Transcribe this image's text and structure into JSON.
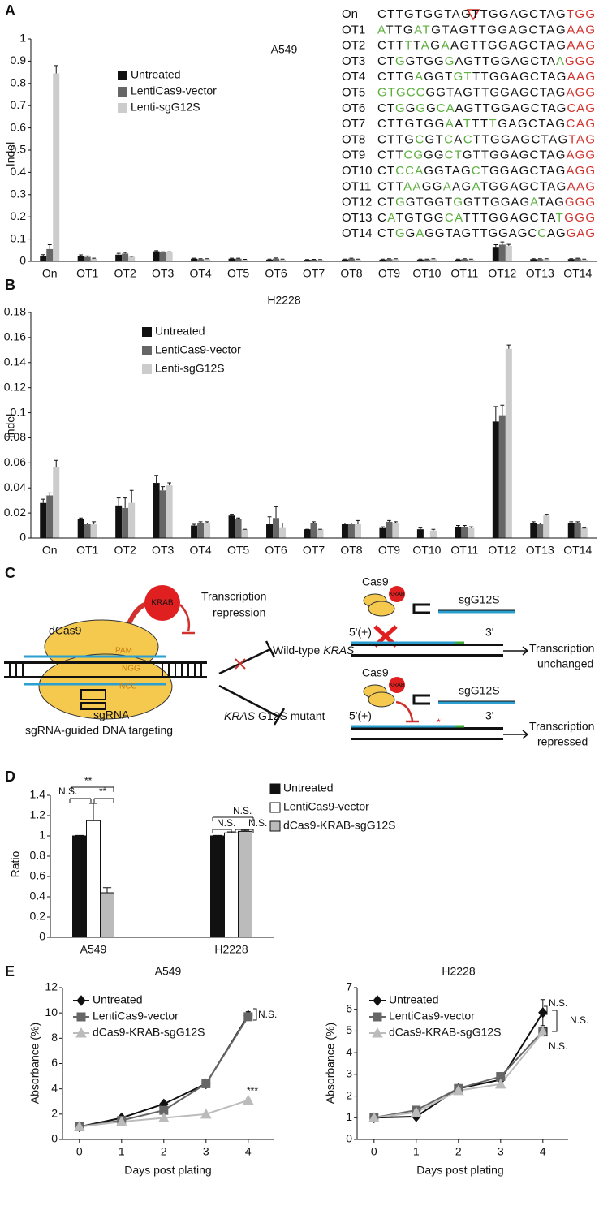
{
  "panel_labels": [
    "A",
    "B",
    "C",
    "D",
    "E"
  ],
  "sequences": [
    {
      "name": "On",
      "segments": [
        {
          "text": "CTTGTGGTAGTTGGAGCTAG",
          "color": "#111111"
        },
        {
          "text": "TGG",
          "color": "#d0312d"
        }
      ]
    },
    {
      "name": "OT1",
      "segments": [
        {
          "text": "A",
          "color": "#5aae3c"
        },
        {
          "text": "TTG",
          "color": "#111111"
        },
        {
          "text": "AT",
          "color": "#5aae3c"
        },
        {
          "text": "GTAGTTGGAGCTAG",
          "color": "#111111"
        },
        {
          "text": "AAG",
          "color": "#d0312d"
        }
      ]
    },
    {
      "name": "OT2",
      "segments": [
        {
          "text": "CTT",
          "color": "#111111"
        },
        {
          "text": "T",
          "color": "#5aae3c"
        },
        {
          "text": "T",
          "color": "#111111"
        },
        {
          "text": "A",
          "color": "#5aae3c"
        },
        {
          "text": "G",
          "color": "#111111"
        },
        {
          "text": "A",
          "color": "#5aae3c"
        },
        {
          "text": "AGTTGGAGCTAG",
          "color": "#111111"
        },
        {
          "text": "AAG",
          "color": "#d0312d"
        }
      ]
    },
    {
      "name": "OT3",
      "segments": [
        {
          "text": "CT",
          "color": "#111111"
        },
        {
          "text": "G",
          "color": "#5aae3c"
        },
        {
          "text": "GTGG",
          "color": "#111111"
        },
        {
          "text": "G",
          "color": "#5aae3c"
        },
        {
          "text": "AGTTGGAGCTA",
          "color": "#111111"
        },
        {
          "text": "A",
          "color": "#5aae3c"
        },
        {
          "text": "GGG",
          "color": "#d0312d"
        }
      ]
    },
    {
      "name": "OT4",
      "segments": [
        {
          "text": "CTTG",
          "color": "#111111"
        },
        {
          "text": "A",
          "color": "#5aae3c"
        },
        {
          "text": "GGT",
          "color": "#111111"
        },
        {
          "text": "GT",
          "color": "#5aae3c"
        },
        {
          "text": "TTGGAGCTAG",
          "color": "#111111"
        },
        {
          "text": "AAG",
          "color": "#d0312d"
        }
      ]
    },
    {
      "name": "OT5",
      "segments": [
        {
          "text": "GTGCC",
          "color": "#5aae3c"
        },
        {
          "text": "GGTAGTTGGAGCTAG",
          "color": "#111111"
        },
        {
          "text": "AGG",
          "color": "#d0312d"
        }
      ]
    },
    {
      "name": "OT6",
      "segments": [
        {
          "text": "CT",
          "color": "#111111"
        },
        {
          "text": "G",
          "color": "#5aae3c"
        },
        {
          "text": "G",
          "color": "#111111"
        },
        {
          "text": "G",
          "color": "#5aae3c"
        },
        {
          "text": "G",
          "color": "#111111"
        },
        {
          "text": "CA",
          "color": "#5aae3c"
        },
        {
          "text": "AGTTGGAGCTAG",
          "color": "#111111"
        },
        {
          "text": "CAG",
          "color": "#d0312d"
        }
      ]
    },
    {
      "name": "OT7",
      "segments": [
        {
          "text": "CTTGTGG",
          "color": "#111111"
        },
        {
          "text": "A",
          "color": "#5aae3c"
        },
        {
          "text": "A",
          "color": "#111111"
        },
        {
          "text": "T",
          "color": "#5aae3c"
        },
        {
          "text": "TT",
          "color": "#111111"
        },
        {
          "text": "T",
          "color": "#5aae3c"
        },
        {
          "text": "GAGCTAG",
          "color": "#111111"
        },
        {
          "text": "CAG",
          "color": "#d0312d"
        }
      ]
    },
    {
      "name": "OT8",
      "segments": [
        {
          "text": "CTTG",
          "color": "#111111"
        },
        {
          "text": "C",
          "color": "#5aae3c"
        },
        {
          "text": "GT",
          "color": "#111111"
        },
        {
          "text": "C",
          "color": "#5aae3c"
        },
        {
          "text": "A",
          "color": "#111111"
        },
        {
          "text": "C",
          "color": "#5aae3c"
        },
        {
          "text": "TTGGAGCTAG",
          "color": "#111111"
        },
        {
          "text": "TAG",
          "color": "#d0312d"
        }
      ]
    },
    {
      "name": "OT9",
      "segments": [
        {
          "text": "CTT",
          "color": "#111111"
        },
        {
          "text": "CG",
          "color": "#5aae3c"
        },
        {
          "text": "GG",
          "color": "#111111"
        },
        {
          "text": "CT",
          "color": "#5aae3c"
        },
        {
          "text": "GTTGGAGCTAG",
          "color": "#111111"
        },
        {
          "text": "AGG",
          "color": "#d0312d"
        }
      ]
    },
    {
      "name": "OT10",
      "segments": [
        {
          "text": "CT",
          "color": "#111111"
        },
        {
          "text": "CCA",
          "color": "#5aae3c"
        },
        {
          "text": "GGTAG",
          "color": "#111111"
        },
        {
          "text": "C",
          "color": "#5aae3c"
        },
        {
          "text": "TGGAGCTAG",
          "color": "#111111"
        },
        {
          "text": "AGG",
          "color": "#d0312d"
        }
      ]
    },
    {
      "name": "OT11",
      "segments": [
        {
          "text": "CTT",
          "color": "#111111"
        },
        {
          "text": "AA",
          "color": "#5aae3c"
        },
        {
          "text": "GG",
          "color": "#111111"
        },
        {
          "text": "A",
          "color": "#5aae3c"
        },
        {
          "text": "AG",
          "color": "#111111"
        },
        {
          "text": "A",
          "color": "#5aae3c"
        },
        {
          "text": "TGGAGCTAG",
          "color": "#111111"
        },
        {
          "text": "AAG",
          "color": "#d0312d"
        }
      ]
    },
    {
      "name": "OT12",
      "segments": [
        {
          "text": "CT",
          "color": "#111111"
        },
        {
          "text": "G",
          "color": "#5aae3c"
        },
        {
          "text": "GTGGT",
          "color": "#111111"
        },
        {
          "text": "G",
          "color": "#5aae3c"
        },
        {
          "text": "GTTGGAG",
          "color": "#111111"
        },
        {
          "text": "A",
          "color": "#5aae3c"
        },
        {
          "text": "TAG",
          "color": "#111111"
        },
        {
          "text": "GGG",
          "color": "#d0312d"
        }
      ]
    },
    {
      "name": "OT13",
      "segments": [
        {
          "text": "C",
          "color": "#111111"
        },
        {
          "text": "A",
          "color": "#5aae3c"
        },
        {
          "text": "TGTGG",
          "color": "#111111"
        },
        {
          "text": "CA",
          "color": "#5aae3c"
        },
        {
          "text": "TTTGGAGCTA",
          "color": "#111111"
        },
        {
          "text": "T",
          "color": "#5aae3c"
        },
        {
          "text": "GGG",
          "color": "#d0312d"
        }
      ]
    },
    {
      "name": "OT14",
      "segments": [
        {
          "text": "CT",
          "color": "#111111"
        },
        {
          "text": "G",
          "color": "#5aae3c"
        },
        {
          "text": "G",
          "color": "#111111"
        },
        {
          "text": "A",
          "color": "#5aae3c"
        },
        {
          "text": "GGTAGTTGGAGC",
          "color": "#111111"
        },
        {
          "text": "C",
          "color": "#5aae3c"
        },
        {
          "text": "AG",
          "color": "#111111"
        },
        {
          "text": "GAG",
          "color": "#d0312d"
        }
      ]
    }
  ],
  "diagram": {
    "dcas9": "dCas9",
    "krab": "KRAB",
    "repression": [
      "Transcription",
      "repression"
    ],
    "pam": "PAM",
    "ngg": "NGG",
    "ncc": "NCC",
    "sgrna": "sgRNA",
    "targeting": "sgRNA-guided DNA targeting",
    "wild_type": [
      "Wild-type",
      "KRAS"
    ],
    "mutant": [
      "KRAS",
      "G12S mutant"
    ],
    "top": {
      "cas9": "Cas9",
      "krab": "KRAB",
      "guide": "sgG12S",
      "five": "5'(+)",
      "three": "3'",
      "outcome": [
        "Transcription",
        "unchanged"
      ]
    },
    "bottom": {
      "cas9": "Cas9",
      "krab": "KRAB",
      "guide": "sgG12S",
      "five": "5'(+)",
      "three": "3'",
      "outcome": [
        "Transcription",
        "repressed"
      ]
    }
  },
  "chart_data": [
    {
      "type": "bar",
      "title": "A549",
      "y_label": "Indel",
      "categories": [
        "On",
        "OT1",
        "OT2",
        "OT3",
        "OT4",
        "OT5",
        "OT6",
        "OT7",
        "OT8",
        "OT9",
        "OT10",
        "OT11",
        "OT12",
        "OT13",
        "OT14"
      ],
      "series": [
        {
          "name": "Untreated",
          "color": "#111111",
          "values": [
            0.025,
            0.025,
            0.03,
            0.045,
            0.012,
            0.012,
            0.008,
            0.007,
            0.008,
            0.008,
            0.008,
            0.008,
            0.065,
            0.01,
            0.01
          ],
          "errors": [
            0.005,
            0.004,
            0.006,
            0.003,
            0.002,
            0.002,
            0.002,
            0.001,
            0.002,
            0.002,
            0.002,
            0.002,
            0.01,
            0.002,
            0.002
          ]
        },
        {
          "name": "LentiCas9-vector",
          "color": "#666666",
          "values": [
            0.055,
            0.02,
            0.035,
            0.04,
            0.01,
            0.012,
            0.012,
            0.008,
            0.012,
            0.01,
            0.008,
            0.01,
            0.075,
            0.01,
            0.012
          ],
          "errors": [
            0.02,
            0.004,
            0.005,
            0.003,
            0.002,
            0.002,
            0.003,
            0.001,
            0.002,
            0.002,
            0.002,
            0.002,
            0.012,
            0.002,
            0.002
          ]
        },
        {
          "name": "Lenti-sgG12S",
          "color": "#cccccc",
          "values": [
            0.845,
            0.012,
            0.02,
            0.04,
            0.01,
            0.008,
            0.008,
            0.007,
            0.008,
            0.01,
            0.01,
            0.008,
            0.07,
            0.01,
            0.008
          ],
          "errors": [
            0.035,
            0.002,
            0.003,
            0.003,
            0.002,
            0.001,
            0.002,
            0.001,
            0.002,
            0.002,
            0.002,
            0.002,
            0.006,
            0.002,
            0.002
          ]
        }
      ],
      "ylim": [
        0,
        1
      ],
      "yticks": [
        0,
        0.1,
        0.2,
        0.3,
        0.4,
        0.5,
        0.6,
        0.7,
        0.8,
        0.9,
        1
      ]
    },
    {
      "type": "bar",
      "title": "H2228",
      "y_label": "Indel",
      "categories": [
        "On",
        "OT1",
        "OT2",
        "OT3",
        "OT4",
        "OT5",
        "OT6",
        "OT7",
        "OT8",
        "OT9",
        "OT10",
        "OT11",
        "OT12",
        "OT13",
        "OT14"
      ],
      "series": [
        {
          "name": "Untreated",
          "color": "#111111",
          "values": [
            0.028,
            0.015,
            0.026,
            0.044,
            0.01,
            0.018,
            0.011,
            0.007,
            0.011,
            0.008,
            0.007,
            0.009,
            0.093,
            0.012,
            0.012
          ],
          "errors": [
            0.003,
            0.001,
            0.006,
            0.006,
            0.001,
            0.001,
            0.006,
            0,
            0.001,
            0.001,
            0.001,
            0.001,
            0.012,
            0.001,
            0.001
          ]
        },
        {
          "name": "LentiCas9-vector",
          "color": "#666666",
          "values": [
            0.034,
            0.011,
            0.024,
            0.038,
            0.012,
            0.015,
            0.016,
            0.012,
            0.011,
            0.013,
            0,
            0.009,
            0.098,
            0.011,
            0.012
          ],
          "errors": [
            0.002,
            0.001,
            0.008,
            0.003,
            0.001,
            0.001,
            0.009,
            0.001,
            0.001,
            0.001,
            0,
            0.001,
            0.008,
            0.001,
            0.001
          ]
        },
        {
          "name": "Lenti-sgG12S",
          "color": "#cccccc",
          "values": [
            0.057,
            0.011,
            0.028,
            0.042,
            0.012,
            0.007,
            0.008,
            0.007,
            0.011,
            0.012,
            0.006,
            0.008,
            0.151,
            0.018,
            0.008
          ],
          "errors": [
            0.005,
            0.002,
            0.01,
            0.002,
            0.001,
            0,
            0.004,
            0,
            0.003,
            0.001,
            0.001,
            0.001,
            0.003,
            0.001,
            0
          ]
        }
      ],
      "ylim": [
        0,
        0.18
      ],
      "yticks": [
        0,
        0.02,
        0.04,
        0.06,
        0.08,
        0.1,
        0.12,
        0.14,
        0.16,
        0.18
      ]
    },
    {
      "type": "bar",
      "y_label": "Ratio",
      "categories": [
        "A549",
        "H2228"
      ],
      "series": [
        {
          "name": "Untreated",
          "color": "#111111",
          "values": [
            1,
            1
          ],
          "errors": [
            0.005,
            0.005
          ]
        },
        {
          "name": "LentiCas9-vector",
          "color": "#ffffff",
          "values": [
            1.15,
            1.03
          ],
          "errors": [
            0.17,
            0.01
          ]
        },
        {
          "name": "dCas9-KRAB-sgG12S",
          "color": "#bbbbbb",
          "values": [
            0.44,
            1.045
          ],
          "errors": [
            0.05,
            0.01
          ]
        }
      ],
      "ylim": [
        0,
        1.4
      ],
      "yticks": [
        0,
        0.2,
        0.4,
        0.6,
        0.8,
        1,
        1.2,
        1.4
      ],
      "annotations": [
        "**",
        "N.S.",
        "**",
        "N.S.",
        "N.S.",
        "N.S."
      ]
    },
    {
      "type": "line",
      "title": "A549",
      "x_label": "Days post plating",
      "y_label": "Absorbance (%)",
      "x": [
        0,
        1,
        2,
        3,
        4
      ],
      "series": [
        {
          "name": "Untreated",
          "color": "#111111",
          "marker": "diamond",
          "values": [
            1,
            1.7,
            2.8,
            4.4,
            9.8
          ],
          "errors": [
            0.05,
            0.1,
            0.1,
            0.1,
            0.3
          ]
        },
        {
          "name": "LentiCas9-vector",
          "color": "#666666",
          "marker": "square",
          "values": [
            1,
            1.5,
            2.3,
            4.4,
            9.7
          ],
          "errors": [
            0.05,
            0.1,
            0.1,
            0.1,
            0.3
          ]
        },
        {
          "name": "dCas9-KRAB-sgG12S",
          "color": "#bbbbbb",
          "marker": "triangle",
          "values": [
            1,
            1.4,
            1.7,
            2,
            3.1
          ],
          "errors": [
            0.05,
            0.05,
            0.05,
            0.05,
            0.15
          ]
        }
      ],
      "xlim": [
        -0.4,
        4.6
      ],
      "xticks": [
        0,
        1,
        2,
        3,
        4
      ],
      "ylim": [
        0,
        12
      ],
      "yticks": [
        0,
        2,
        4,
        6,
        8,
        10,
        12
      ],
      "annotations": [
        "N.S.",
        "***"
      ]
    },
    {
      "type": "line",
      "title": "H2228",
      "x_label": "Days post plating",
      "y_label": "Absorbance (%)",
      "x": [
        0,
        1,
        2,
        3,
        4
      ],
      "series": [
        {
          "name": "Untreated",
          "color": "#111111",
          "marker": "diamond",
          "values": [
            1,
            1.05,
            2.35,
            2.75,
            5.85
          ],
          "errors": [
            0.05,
            0.1,
            0.1,
            0.1,
            0.6
          ]
        },
        {
          "name": "LentiCas9-vector",
          "color": "#666666",
          "marker": "square",
          "values": [
            1,
            1.35,
            2.35,
            2.9,
            5
          ],
          "errors": [
            0.05,
            0.1,
            0.1,
            0.1,
            0.15
          ]
        },
        {
          "name": "dCas9-KRAB-sgG12S",
          "color": "#bbbbbb",
          "marker": "triangle",
          "values": [
            1,
            1.25,
            2.25,
            2.55,
            4.95
          ],
          "errors": [
            0.05,
            0.1,
            0.1,
            0.1,
            0.1
          ]
        }
      ],
      "xlim": [
        -0.4,
        4.6
      ],
      "xticks": [
        0,
        1,
        2,
        3,
        4
      ],
      "ylim": [
        0,
        7
      ],
      "yticks": [
        0,
        1,
        2,
        3,
        4,
        5,
        6,
        7
      ],
      "annotations": [
        "N.S.",
        "N.S.",
        "N.S."
      ]
    }
  ]
}
